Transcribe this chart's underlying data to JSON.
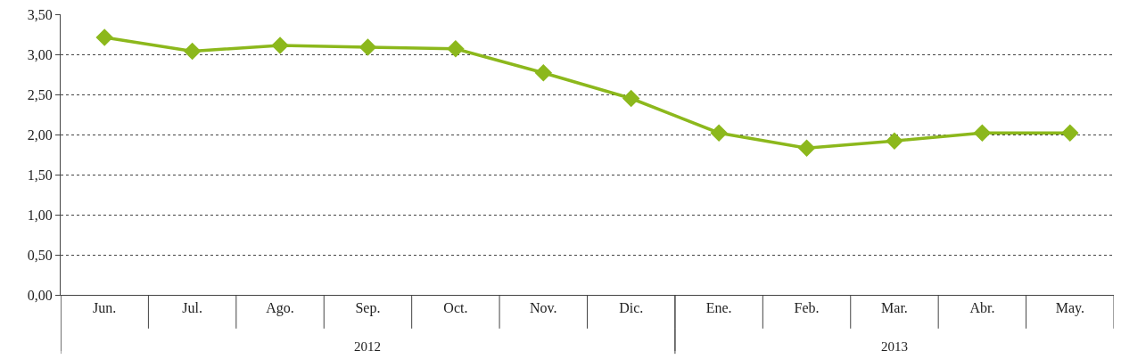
{
  "chart_data": {
    "type": "line",
    "categories": [
      "Jun.",
      "Jul.",
      "Ago.",
      "Sep.",
      "Oct.",
      "Nov.",
      "Dic.",
      "Ene.",
      "Feb.",
      "Mar.",
      "Abr.",
      "May."
    ],
    "series": [
      {
        "color": "#8cb81c",
        "values": [
          3.21,
          3.04,
          3.11,
          3.09,
          3.07,
          2.77,
          2.45,
          2.02,
          1.83,
          1.92,
          2.02,
          2.02
        ]
      }
    ],
    "ylim": [
      0,
      3.5
    ],
    "yticks": [
      {
        "value": 0,
        "label": "0,00"
      },
      {
        "value": 0.5,
        "label": "0,50"
      },
      {
        "value": 1,
        "label": "1,00"
      },
      {
        "value": 1.5,
        "label": "1,50"
      },
      {
        "value": 2,
        "label": "2,00"
      },
      {
        "value": 2.5,
        "label": "2,50"
      },
      {
        "value": 3,
        "label": "3,00"
      },
      {
        "value": 3.5,
        "label": "3,50"
      }
    ],
    "annotations": [
      "2012",
      "2013"
    ],
    "grid": "y",
    "marker": "diamond",
    "line_style": "solid"
  }
}
